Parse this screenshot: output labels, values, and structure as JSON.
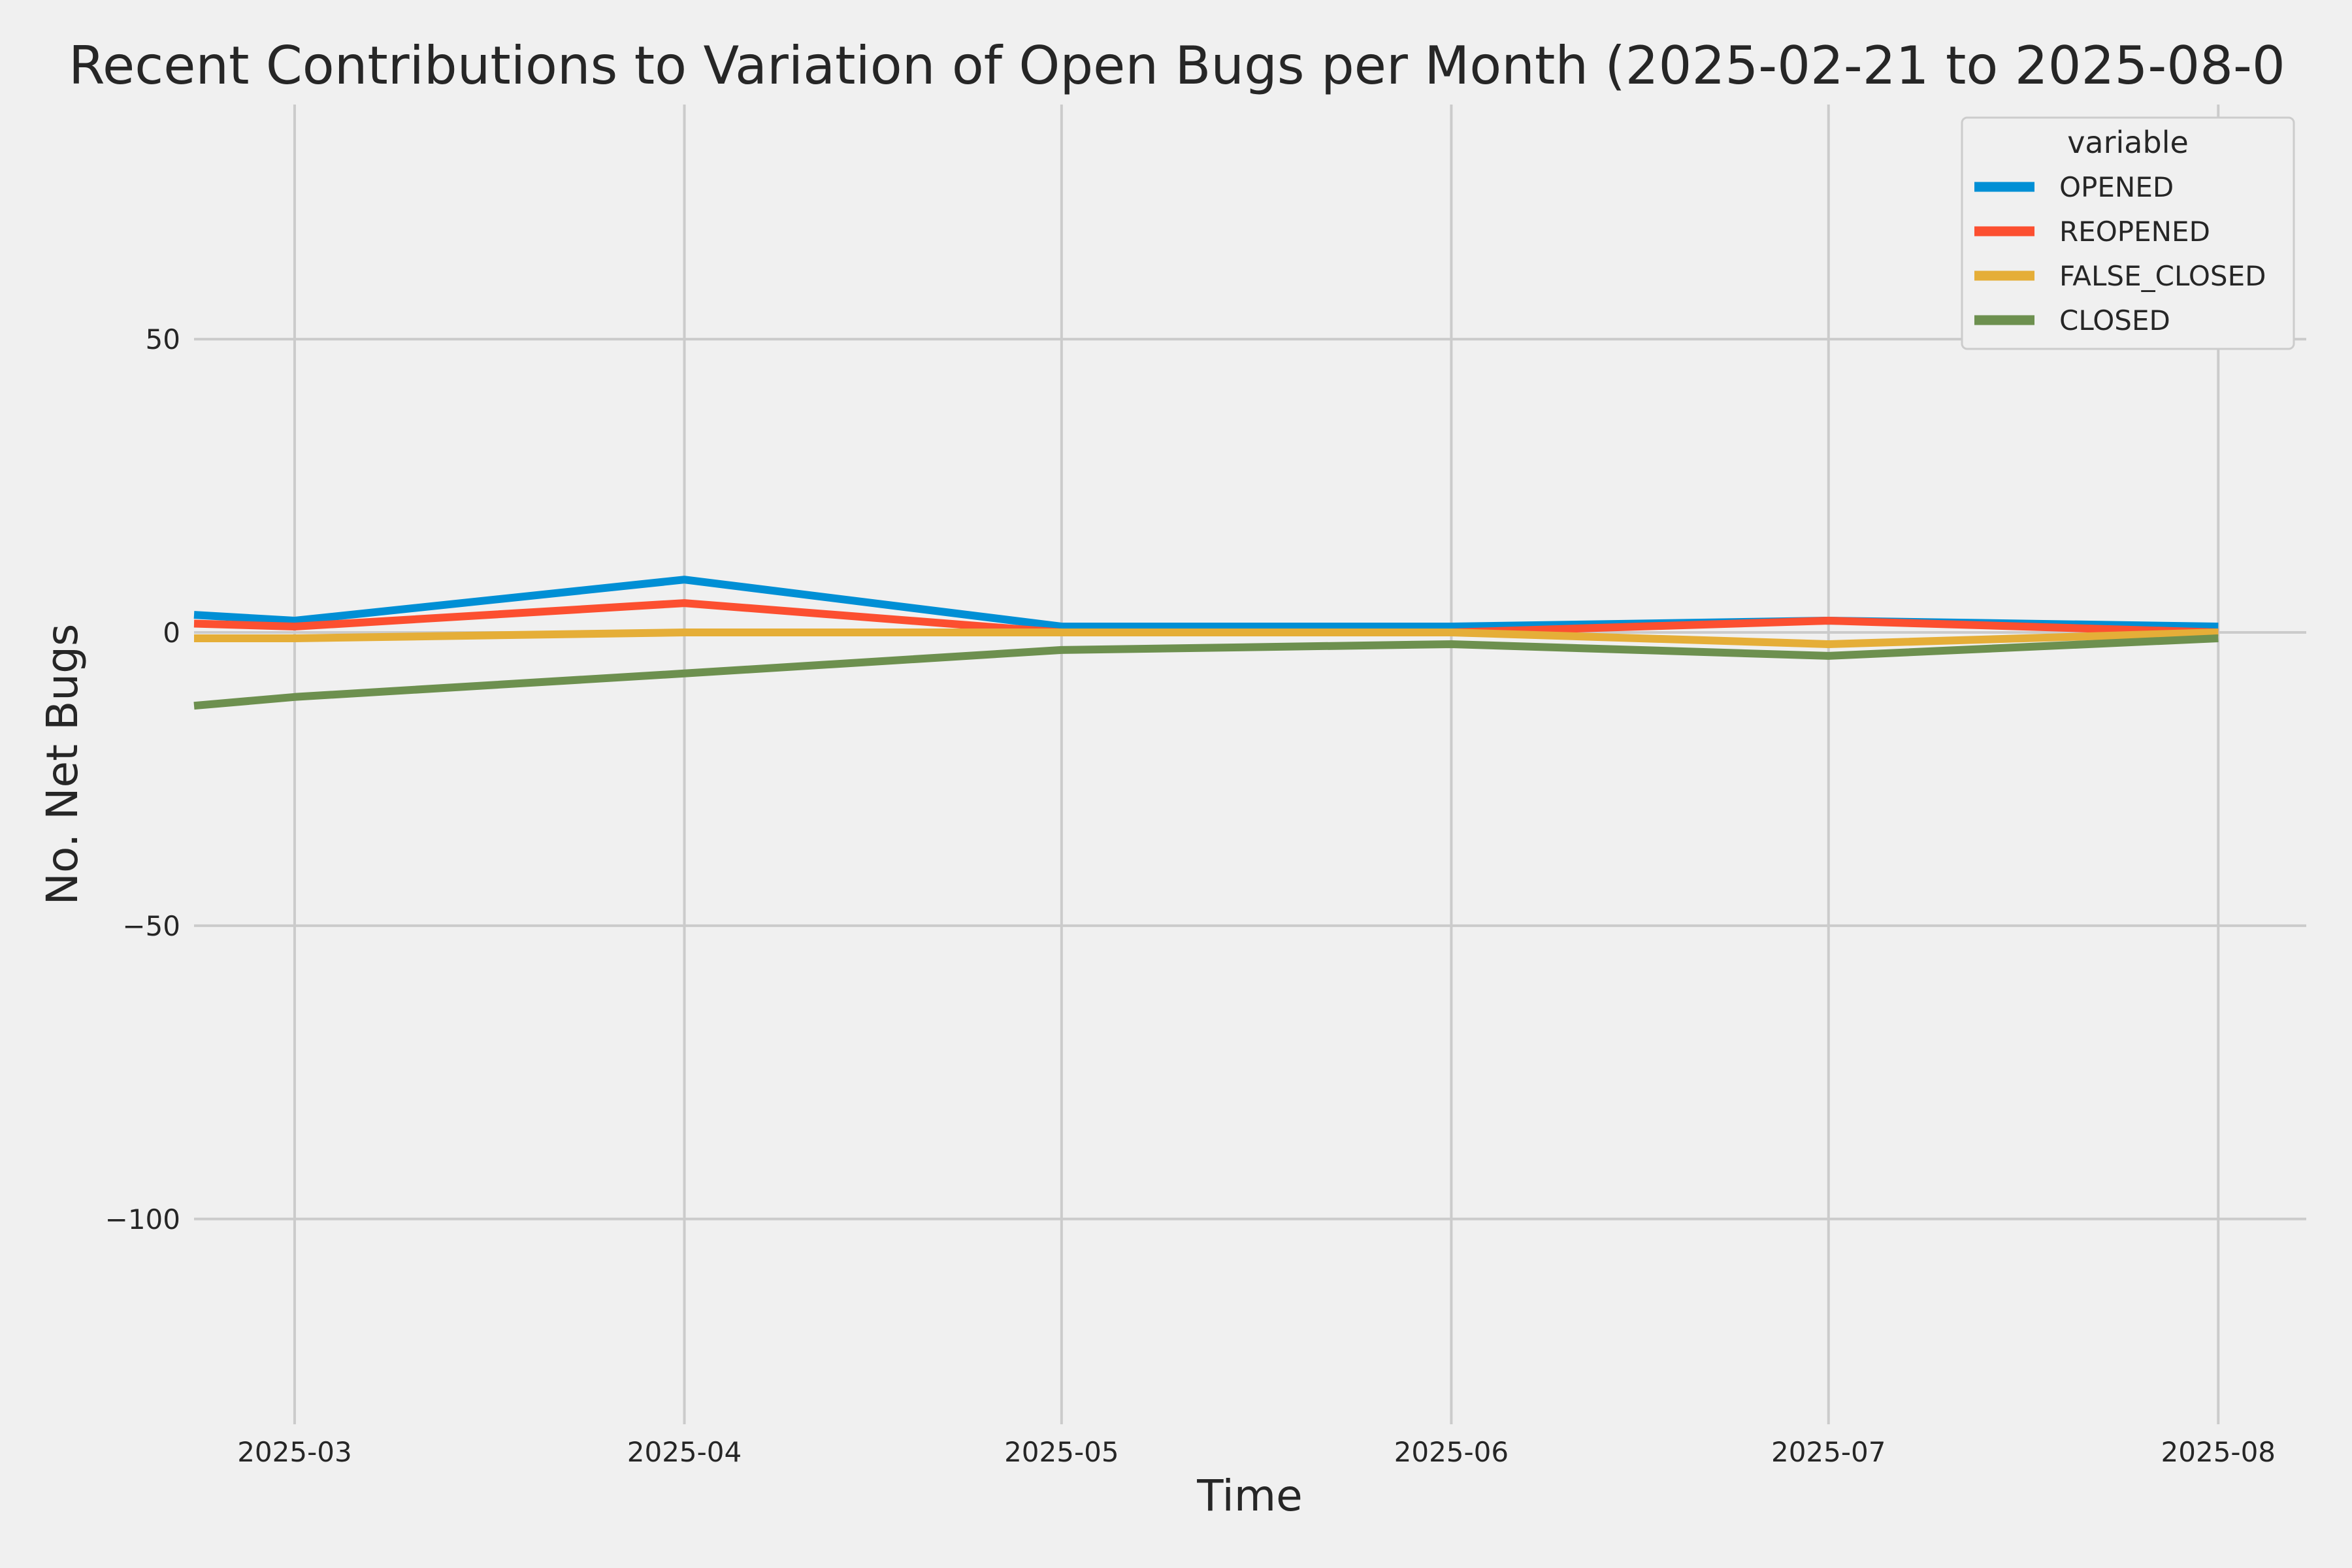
{
  "chart_data": {
    "type": "line",
    "title": "Recent Contributions to Variation of Open Bugs per Month (2025-02-21 to 2025-08-0",
    "xlabel": "Time",
    "ylabel": "No. Net Bugs",
    "x": [
      "2025-02-21",
      "2025-03-01",
      "2025-04-01",
      "2025-05-01",
      "2025-06-01",
      "2025-07-01",
      "2025-08-01"
    ],
    "x_ticks": [
      "2025-03",
      "2025-04",
      "2025-05",
      "2025-06",
      "2025-07",
      "2025-08"
    ],
    "x_tick_dates": [
      "2025-03-01",
      "2025-04-01",
      "2025-05-01",
      "2025-06-01",
      "2025-07-01",
      "2025-08-01"
    ],
    "xlim": [
      "2025-02-21",
      "2025-08-08"
    ],
    "y_ticks": [
      50,
      0,
      -50,
      -100
    ],
    "y_tick_labels": [
      "50",
      "0",
      "−50",
      "−100"
    ],
    "ylim": [
      -135,
      90
    ],
    "grid": true,
    "legend": {
      "title": "variable",
      "placement": "top-right"
    },
    "series": [
      {
        "name": "OPENED",
        "color": "#008fd5",
        "values": [
          3,
          2,
          9,
          1,
          1,
          2,
          1
        ]
      },
      {
        "name": "REOPENED",
        "color": "#fc4f30",
        "values": [
          1.5,
          1,
          5,
          0,
          0,
          2,
          0
        ]
      },
      {
        "name": "FALSE_CLOSED",
        "color": "#e5ae38",
        "values": [
          -1,
          -1,
          0,
          0,
          0,
          -2,
          0
        ]
      },
      {
        "name": "CLOSED",
        "color": "#6d904f",
        "values": [
          -12.5,
          -11,
          -7,
          -3,
          -2,
          -4,
          -1
        ]
      }
    ]
  }
}
